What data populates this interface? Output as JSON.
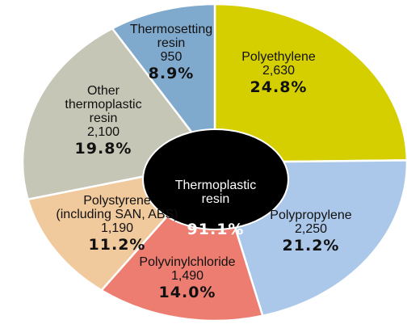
{
  "chart_data": {
    "type": "pie",
    "categories": [
      "Polyethylene",
      "Polypropylene",
      "Polyvinylchloride",
      "Polystyrene\n(including SAN, ABS)",
      "Other\nthermoplastic\nresin",
      "Thermosetting\nresin"
    ],
    "values": [
      2630,
      2250,
      1490,
      1190,
      2100,
      950
    ],
    "value_labels": [
      "2,630",
      "2,250",
      "1,490",
      "1,190",
      "2,100",
      "950"
    ],
    "percentages": [
      24.8,
      21.2,
      14.0,
      11.2,
      19.8,
      8.9
    ],
    "percentage_labels": [
      "24.8%",
      "21.2%",
      "14.0%",
      "11.2%",
      "19.8%",
      "8.9%"
    ],
    "colors": [
      "#d5cf00",
      "#abc8ea",
      "#ec7d70",
      "#f0c99c",
      "#c5c6b6",
      "#80aacd"
    ],
    "center_label": "Thermoplastic\nresin",
    "center_value": 91.1,
    "center_value_label": "91.1%"
  }
}
